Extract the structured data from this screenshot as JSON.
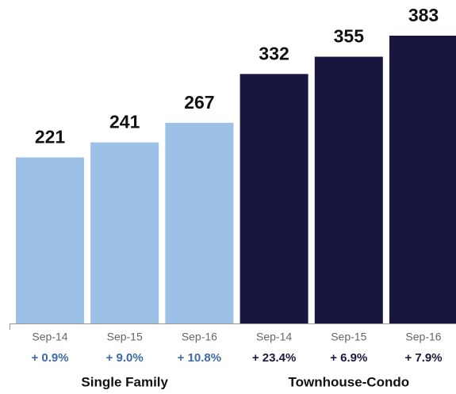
{
  "chart_data": {
    "type": "bar",
    "categories": [
      "Sep-14",
      "Sep-15",
      "Sep-16"
    ],
    "series": [
      {
        "name": "Single Family",
        "color": "#9dc0e6",
        "change_color": "#3d6aa8",
        "values": [
          221,
          241,
          267
        ],
        "changes": [
          "+ 0.9%",
          "+ 9.0%",
          "+ 10.8%"
        ]
      },
      {
        "name": "Townhouse-Condo",
        "color": "#16163e",
        "change_color": "#1a1a40",
        "values": [
          332,
          355,
          383
        ],
        "changes": [
          "+ 23.4%",
          "+ 6.9%",
          "+ 7.9%"
        ]
      }
    ]
  }
}
